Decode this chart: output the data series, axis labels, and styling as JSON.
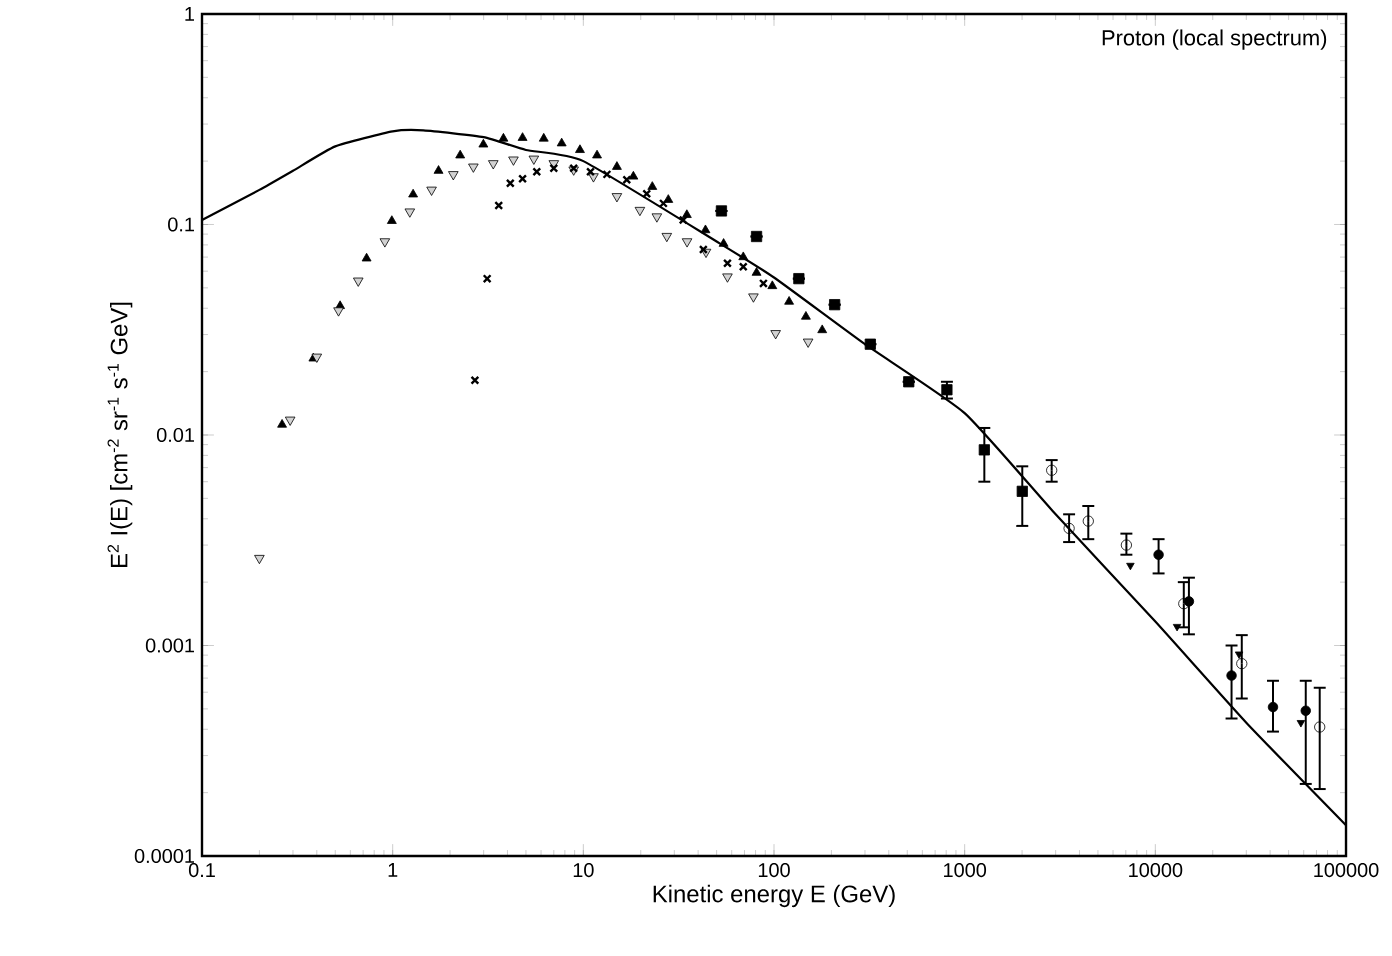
{
  "chart_data": {
    "type": "scatter",
    "xlabel": "Kinetic energy E (GeV)",
    "ylabel": "E$^{2}$ I(E) [cm$^{-2}$ sr$^{-1}$ s$^{-1}$ GeV]",
    "annotations": [
      "Proton (local spectrum)"
    ],
    "log": "xy",
    "xlim": [
      0.1,
      100000
    ],
    "ylim": [
      0.0001,
      1
    ],
    "xticks": [
      0.1,
      1,
      10,
      100,
      1000,
      10000,
      100000
    ],
    "yticks": [
      0.0001,
      0.001,
      0.01,
      0.1,
      1
    ],
    "series": [
      {
        "type": "line",
        "color": "#000000",
        "marker": "none",
        "line_style": "solid",
        "x": [
          0.1,
          0.2,
          0.3,
          0.5,
          1,
          1.45,
          3,
          5,
          10,
          50,
          100,
          300,
          1000,
          3000,
          10000,
          30000,
          100000
        ],
        "values": [
          0.105,
          0.146,
          0.18,
          0.235,
          0.277,
          0.28,
          0.26,
          0.226,
          0.2,
          0.083,
          0.056,
          0.027,
          0.0127,
          0.0042,
          0.0013,
          0.00043,
          0.00014
        ]
      },
      {
        "color": "#000000",
        "marker": "triangle",
        "x": [
          0.263,
          0.384,
          0.53,
          0.73,
          0.99,
          1.28,
          1.74,
          2.26,
          2.99,
          3.81,
          4.8,
          6.2,
          7.7,
          9.6,
          11.8,
          15,
          18.3,
          23,
          27.9,
          34.9,
          43.7,
          54.4,
          69,
          81,
          98,
          120,
          147,
          179
        ],
        "values": [
          0.0112,
          0.0231,
          0.041,
          0.069,
          0.104,
          0.139,
          0.18,
          0.213,
          0.24,
          0.256,
          0.258,
          0.256,
          0.243,
          0.226,
          0.213,
          0.188,
          0.169,
          0.151,
          0.131,
          0.111,
          0.094,
          0.081,
          0.07,
          0.059,
          0.051,
          0.043,
          0.0365,
          0.0315
        ]
      },
      {
        "color": "#000000",
        "marker": "triangle-down-open",
        "x": [
          0.2,
          0.29,
          0.4,
          0.52,
          0.66,
          0.91,
          1.23,
          1.6,
          2.08,
          2.65,
          3.37,
          4.3,
          5.5,
          7,
          8.9,
          11.3,
          15,
          19.8,
          24.3,
          27.4,
          35,
          44,
          57,
          78,
          102,
          151
        ],
        "values": [
          0.0026,
          0.0118,
          0.0235,
          0.039,
          0.054,
          0.083,
          0.115,
          0.146,
          0.173,
          0.188,
          0.195,
          0.203,
          0.205,
          0.195,
          0.182,
          0.169,
          0.136,
          0.117,
          0.109,
          0.088,
          0.083,
          0.074,
          0.0565,
          0.0454,
          0.0304,
          0.0277
        ]
      },
      {
        "color": "#000000",
        "marker": "cross",
        "x": [
          2.7,
          3.13,
          3.6,
          4.14,
          4.8,
          5.7,
          7,
          8.9,
          10.9,
          13.3,
          16.9,
          21.5,
          26.3,
          33.4,
          42.6,
          57,
          69,
          88
        ],
        "values": [
          0.0182,
          0.0553,
          0.123,
          0.157,
          0.165,
          0.178,
          0.185,
          0.185,
          0.178,
          0.173,
          0.163,
          0.14,
          0.126,
          0.105,
          0.076,
          0.0655,
          0.063,
          0.0525
        ]
      },
      {
        "color": "#000000",
        "marker": "square",
        "x": [
          53,
          81,
          135,
          208,
          320,
          509,
          807,
          1268,
          2005
        ],
        "values": [
          0.116,
          0.0877,
          0.0553,
          0.0416,
          0.027,
          0.0179,
          0.0164,
          0.0085,
          0.0054
        ],
        "errors": [
          null,
          null,
          null,
          null,
          null,
          null,
          [
            0.0149,
            0.0179
          ],
          [
            0.006,
            0.0108
          ],
          [
            0.0037,
            0.0071
          ]
        ]
      },
      {
        "color": "#000000",
        "marker": "circle-open",
        "x": [
          2860,
          3530,
          4450,
          7050,
          14100,
          28400,
          72800
        ],
        "values": [
          0.0068,
          0.0036,
          0.0039,
          0.003,
          0.00158,
          0.00082,
          0.00041
        ],
        "errors": [
          [
            0.006,
            0.0076
          ],
          [
            0.0031,
            0.0042
          ],
          [
            0.0032,
            0.0046
          ],
          [
            0.0027,
            0.0034
          ],
          [
            0.00122,
            0.002
          ],
          [
            0.00056,
            0.00112
          ],
          [
            0.000208,
            0.00063
          ]
        ]
      },
      {
        "color": "#000000",
        "marker": "circle",
        "x": [
          10400,
          15000,
          25100,
          41400,
          61500
        ],
        "values": [
          0.0027,
          0.00162,
          0.00072,
          0.00051,
          0.00049
        ],
        "errors": [
          [
            0.0022,
            0.0032
          ],
          [
            0.00113,
            0.0021
          ],
          [
            0.00045,
            0.001
          ],
          [
            0.00039,
            0.00068
          ],
          [
            0.00022,
            0.00068
          ]
        ]
      },
      {
        "color": "#000000",
        "marker": "triangle-down",
        "x": [
          7400,
          13000,
          27500,
          58000
        ],
        "values": [
          0.0024,
          0.00123,
          0.00091,
          0.00043
        ]
      }
    ]
  }
}
